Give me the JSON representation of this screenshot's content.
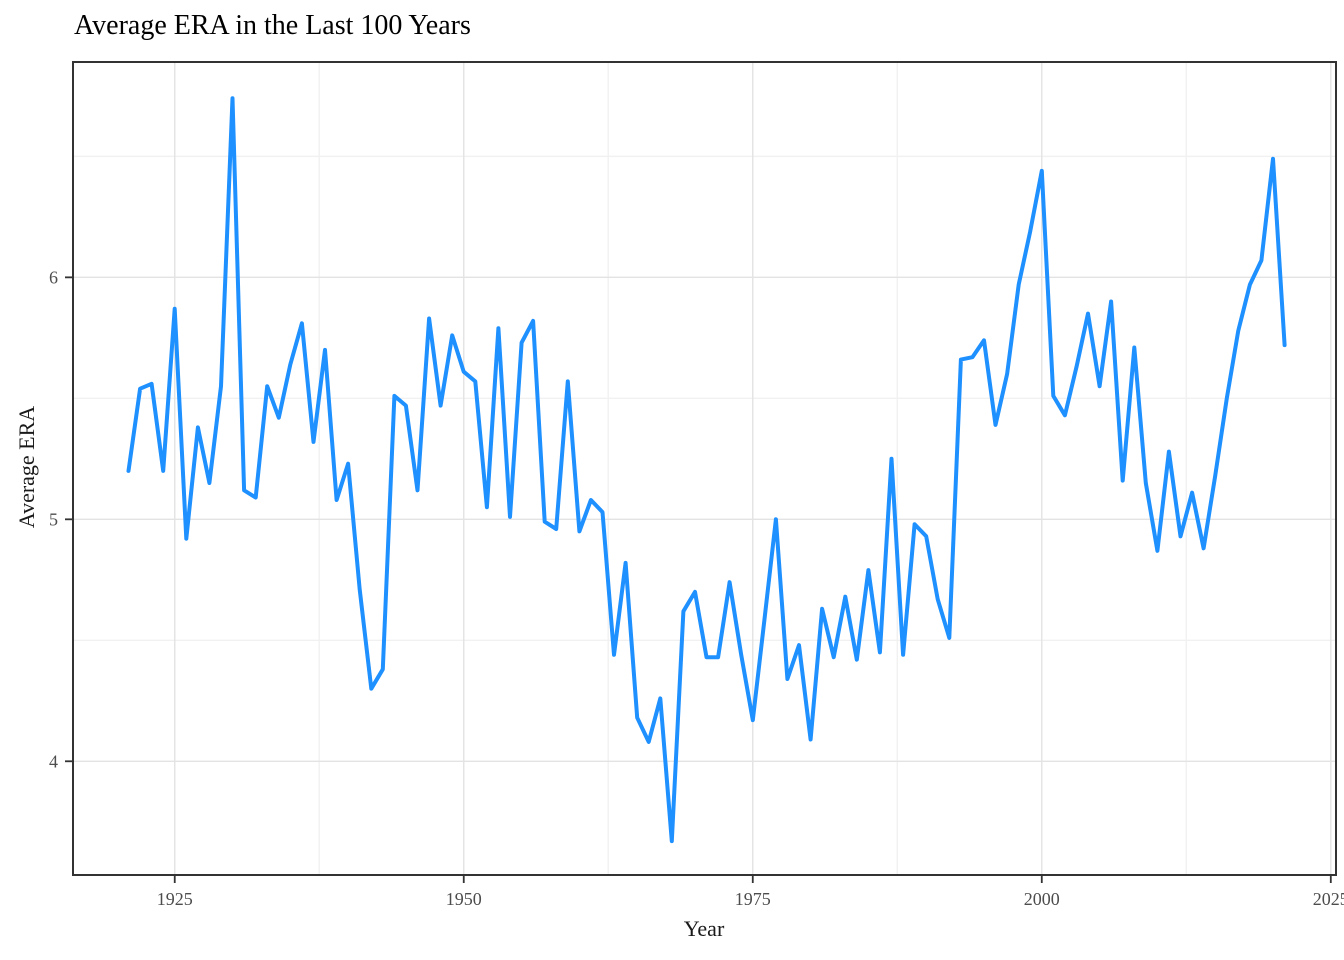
{
  "chart_data": {
    "type": "line",
    "title": "Average ERA in the Last 100 Years",
    "xlabel": "Year",
    "ylabel": "Average ERA",
    "series": [
      {
        "name": "Average ERA",
        "years": [
          1921,
          1922,
          1923,
          1924,
          1925,
          1926,
          1927,
          1928,
          1929,
          1930,
          1931,
          1932,
          1933,
          1934,
          1935,
          1936,
          1937,
          1938,
          1939,
          1940,
          1941,
          1942,
          1943,
          1944,
          1945,
          1946,
          1947,
          1948,
          1949,
          1950,
          1951,
          1952,
          1953,
          1954,
          1955,
          1956,
          1957,
          1958,
          1959,
          1960,
          1961,
          1962,
          1963,
          1964,
          1965,
          1966,
          1967,
          1968,
          1969,
          1970,
          1971,
          1972,
          1973,
          1974,
          1975,
          1976,
          1977,
          1978,
          1979,
          1980,
          1981,
          1982,
          1983,
          1984,
          1985,
          1986,
          1987,
          1988,
          1989,
          1990,
          1991,
          1992,
          1993,
          1994,
          1995,
          1996,
          1997,
          1998,
          1999,
          2000,
          2001,
          2002,
          2003,
          2004,
          2005,
          2006,
          2007,
          2008,
          2009,
          2010,
          2011,
          2012,
          2013,
          2014,
          2015,
          2016,
          2017,
          2018,
          2019,
          2020,
          2021
        ],
        "values": [
          5.2,
          5.54,
          5.56,
          5.2,
          5.87,
          4.92,
          5.38,
          5.15,
          5.55,
          6.74,
          5.12,
          5.09,
          5.55,
          5.42,
          5.64,
          5.81,
          5.32,
          5.7,
          5.08,
          5.23,
          4.71,
          4.3,
          4.38,
          5.51,
          5.47,
          5.12,
          5.83,
          5.47,
          5.76,
          5.61,
          5.57,
          5.05,
          5.79,
          5.01,
          5.73,
          5.82,
          4.99,
          4.96,
          5.57,
          4.95,
          5.08,
          5.03,
          4.44,
          4.82,
          4.18,
          4.08,
          4.26,
          3.67,
          4.62,
          4.7,
          4.43,
          4.43,
          4.74,
          4.44,
          4.17,
          4.58,
          5.0,
          4.34,
          4.48,
          4.09,
          4.63,
          4.43,
          4.68,
          4.42,
          4.79,
          4.45,
          5.25,
          4.44,
          4.98,
          4.93,
          4.67,
          4.51,
          5.66,
          5.67,
          5.74,
          5.39,
          5.6,
          5.97,
          6.19,
          6.44,
          5.51,
          5.43,
          5.63,
          5.85,
          5.55,
          5.9,
          5.16,
          5.71,
          5.15,
          4.87,
          5.28,
          4.93,
          5.11,
          4.88,
          5.18,
          5.5,
          5.78,
          5.97,
          6.07,
          6.49,
          5.72
        ]
      }
    ],
    "x_ticks": [
      1925,
      1950,
      1975,
      2000,
      2025
    ],
    "x_minor": [
      1937.5,
      1962.5,
      1987.5,
      2012.5
    ],
    "y_ticks": [
      4,
      5,
      6
    ],
    "y_minor": [
      4.5,
      5.5,
      6.5
    ],
    "xlim": [
      1916.2,
      2025.45
    ],
    "ylim": [
      3.53,
      6.89
    ],
    "grid": "on",
    "legend": "none",
    "colors": {
      "line": "#1E90FF",
      "grid_major": "#E3E3E3",
      "grid_minor": "#F1F1F1",
      "panel_border": "#333333",
      "tick_mark": "#333333",
      "tick_label": "#4D4D4D",
      "title": "#000000",
      "background": "#FFFFFF"
    }
  }
}
